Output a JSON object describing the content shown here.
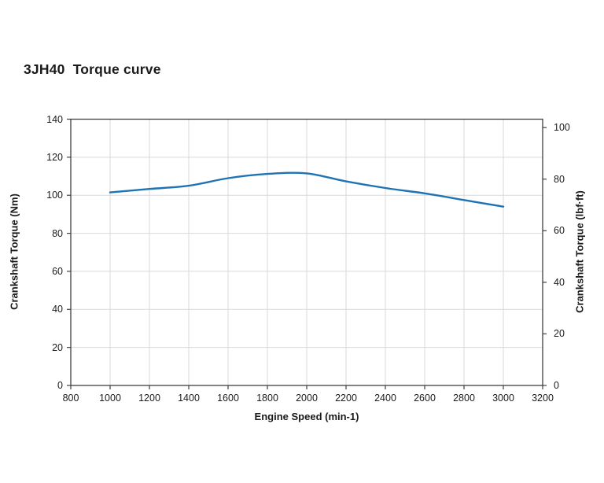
{
  "page": {
    "background": "#ffffff"
  },
  "chart_data": {
    "type": "line",
    "title": "3JH40  Torque curve",
    "xlabel": "Engine Speed (min-1)",
    "ylabel_left": "Crankshaft Torque (Nm)",
    "ylabel_right": "Crankshaft Torque (lbf·ft)",
    "xlim": [
      800,
      3200
    ],
    "ylim_left_nm": [
      0,
      140
    ],
    "ylim_right_lbfft": [
      0,
      103.3
    ],
    "x_ticks": [
      800,
      1000,
      1200,
      1400,
      1600,
      1800,
      2000,
      2200,
      2400,
      2600,
      2800,
      3000,
      3200
    ],
    "y_left_ticks_nm": [
      0,
      20,
      40,
      60,
      80,
      100,
      120,
      140
    ],
    "y_right_ticks_lbfft": [
      0,
      20,
      40,
      60,
      80,
      100
    ],
    "nm_per_lbfft": 1.35582,
    "grid": true,
    "legend": "none",
    "series": [
      {
        "name": "Crankshaft Torque",
        "color": "#1e73b5",
        "x": [
          1000,
          1200,
          1400,
          1600,
          1800,
          2000,
          2200,
          2400,
          2600,
          2800,
          3000
        ],
        "y_nm": [
          101.5,
          103.3,
          105.0,
          109.0,
          111.2,
          111.5,
          107.3,
          103.8,
          101.0,
          97.5,
          94.0
        ]
      }
    ]
  },
  "colors": {
    "line": "#1e73b5",
    "grid": "#d9d9d9",
    "frame": "#404040",
    "text": "#1a1a1a"
  }
}
